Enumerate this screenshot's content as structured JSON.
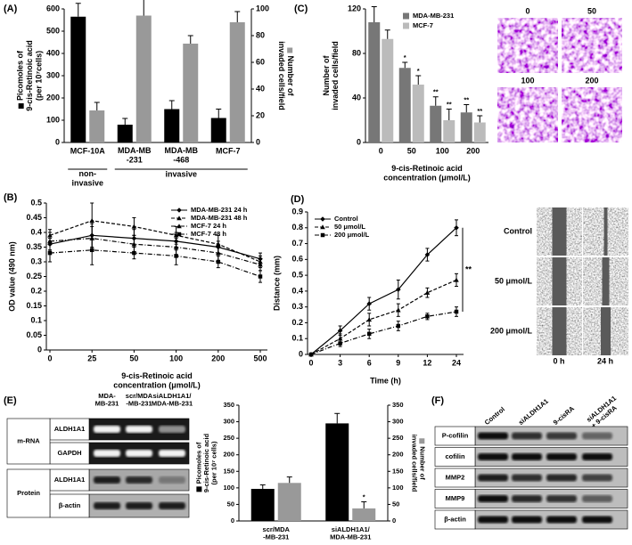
{
  "panel_labels": [
    "(A)",
    "(B)",
    "(C)",
    "(D)",
    "(E)",
    "(F)"
  ],
  "chart_data": [
    {
      "type": "bar",
      "categories": [
        "MCF-10A",
        "MDA-MB\n-231",
        "MDA-MB\n-468",
        "MCF-7"
      ],
      "groups": [
        "non-\ninvasive",
        "invasive"
      ],
      "ylabel": "Picomoles of\n9-cis-Retinoic acid\n(per 10⁷cells)",
      "y2label": "Number of\ninvaded cells/field",
      "ylim": [
        0,
        600
      ],
      "yticks": [
        0,
        100,
        200,
        300,
        400,
        500,
        600
      ],
      "y2lim": [
        0,
        100
      ],
      "y2ticks": [
        0,
        20,
        40,
        60,
        80,
        100
      ],
      "series": [
        {
          "color": "#000000",
          "values": [
            565,
            80,
            150,
            110
          ],
          "errors": [
            60,
            28,
            38,
            40
          ]
        },
        {
          "color": "#999999",
          "axis": "y2",
          "values": [
            24,
            95,
            74,
            90
          ],
          "errors": [
            6,
            14,
            6,
            8
          ]
        }
      ]
    },
    {
      "type": "line",
      "categories": [
        0,
        25,
        50,
        100,
        200,
        500
      ],
      "xlabel": "9-cis-Retinoic acid\nconcentration (μmol/L)",
      "ylabel": "OD value (490 nm)",
      "ylim": [
        0,
        0.5
      ],
      "yticks": [
        0,
        0.05,
        0.1,
        0.15,
        0.2,
        0.25,
        0.3,
        0.35,
        0.4,
        0.45,
        0.5
      ],
      "legend": "upper right",
      "series": [
        {
          "name": "MDA-MB-231 24 h",
          "color": "#000000",
          "marker": "diamond",
          "dash": "solid",
          "values": [
            0.36,
            0.39,
            0.38,
            0.37,
            0.35,
            0.31
          ],
          "errors": [
            0.02,
            0.04,
            0.03,
            0.03,
            0.02,
            0.02
          ]
        },
        {
          "name": "MDA-MB-231 48 h",
          "color": "#000000",
          "marker": "triangle",
          "dash": "dash",
          "values": [
            0.39,
            0.44,
            0.42,
            0.39,
            0.36,
            0.3
          ],
          "errors": [
            0.02,
            0.06,
            0.03,
            0.03,
            0.03,
            0.02
          ]
        },
        {
          "name": "MCF-7 24 h",
          "color": "#000000",
          "marker": "triangle",
          "dash": "dashdot",
          "values": [
            0.37,
            0.38,
            0.36,
            0.35,
            0.33,
            0.29
          ],
          "errors": [
            0.03,
            0.04,
            0.03,
            0.03,
            0.03,
            0.02
          ]
        },
        {
          "name": "MCF-7 48 h",
          "color": "#000000",
          "marker": "square",
          "dash": "dashdot",
          "values": [
            0.33,
            0.34,
            0.33,
            0.32,
            0.3,
            0.25
          ],
          "errors": [
            0.03,
            0.05,
            0.02,
            0.03,
            0.02,
            0.02
          ]
        }
      ]
    },
    {
      "type": "bar",
      "categories": [
        0,
        50,
        100,
        200
      ],
      "xlabel": "9-cis-Retinoic acid\nconcentration (μmol/L)",
      "ylabel": "Number of\ninvaded cells/field",
      "ylim": [
        0,
        120
      ],
      "yticks": [
        0,
        40,
        80,
        120
      ],
      "legend": "upper right",
      "series": [
        {
          "name": "MDA-MB-231",
          "color": "#777777",
          "values": [
            108,
            67,
            33,
            27
          ],
          "errors": [
            14,
            5,
            8,
            7
          ]
        },
        {
          "name": "MCF-7",
          "color": "#bbbbbb",
          "values": [
            93,
            52,
            20,
            18
          ],
          "errors": [
            8,
            8,
            10,
            6
          ]
        }
      ],
      "annotations": [
        {
          "text": "*",
          "series": 0,
          "index": 1
        },
        {
          "text": "*",
          "series": 1,
          "index": 1
        },
        {
          "text": "**",
          "series": 0,
          "index": 2
        },
        {
          "text": "**",
          "series": 1,
          "index": 2
        },
        {
          "text": "**",
          "series": 0,
          "index": 3
        },
        {
          "text": "**",
          "series": 1,
          "index": 3
        }
      ]
    },
    {
      "type": "line",
      "categories": [
        0,
        3,
        6,
        9,
        12,
        24
      ],
      "xlabel": "Time (h)",
      "ylabel": "Distance (mm)",
      "ylim": [
        0,
        0.9
      ],
      "yticks": [
        0,
        0.1,
        0.2,
        0.3,
        0.4,
        0.5,
        0.6,
        0.7,
        0.8,
        0.9
      ],
      "legend": "upper left",
      "series": [
        {
          "name": "Control",
          "color": "#000000",
          "marker": "diamond",
          "dash": "solid",
          "values": [
            0,
            0.15,
            0.32,
            0.41,
            0.63,
            0.8
          ],
          "errors": [
            0,
            0.03,
            0.04,
            0.06,
            0.04,
            0.05
          ]
        },
        {
          "name": "50 μmol/L",
          "color": "#000000",
          "marker": "triangle",
          "dash": "dash",
          "values": [
            0,
            0.1,
            0.22,
            0.28,
            0.39,
            0.47
          ],
          "errors": [
            0,
            0.03,
            0.04,
            0.04,
            0.03,
            0.04
          ]
        },
        {
          "name": "200 μmol/L",
          "color": "#000000",
          "marker": "square",
          "dash": "dashdot",
          "values": [
            0,
            0.07,
            0.13,
            0.18,
            0.24,
            0.27
          ],
          "errors": [
            0,
            0.02,
            0.03,
            0.03,
            0.02,
            0.03
          ]
        }
      ],
      "annotations": [
        {
          "text": "**",
          "series": [
            0,
            2
          ]
        }
      ]
    },
    {
      "type": "bar",
      "categories": [
        "scr/MDA\n-MB-231",
        "siALDH1A1/\nMDA-MB-231"
      ],
      "ylabel": "Picomoles of\n9-cis-Retinoic acid\n(per 10⁷ cells)",
      "y2label": "Number of\ninvaded cells/field",
      "ylim": [
        0,
        350
      ],
      "yticks": [
        0,
        50,
        100,
        150,
        200,
        250,
        300,
        350
      ],
      "y2lim": [
        0,
        350
      ],
      "y2ticks": [
        0,
        50,
        100,
        150,
        200,
        250,
        300,
        350
      ],
      "series": [
        {
          "color": "#000000",
          "values": [
            97,
            295
          ],
          "errors": [
            12,
            30
          ]
        },
        {
          "color": "#999999",
          "axis": "y2",
          "values": [
            115,
            38
          ],
          "errors": [
            18,
            20
          ]
        }
      ],
      "annotations": [
        {
          "text": "*",
          "series": 1,
          "index": 1
        }
      ]
    }
  ],
  "invasion_images": {
    "labels": [
      "0",
      "50",
      "100",
      "200"
    ]
  },
  "migration_images": {
    "rows": [
      "Control",
      "50 μmol/L",
      "200 μmol/L"
    ],
    "columns": [
      "0 h",
      "24 h"
    ]
  },
  "blot_e": {
    "lanes": [
      "MDA-\nMB-231",
      "scr/MDA\n-MB-231",
      "siALDH1A1/\nMDA-MB-231"
    ],
    "groups": [
      "m-RNA",
      "Protein"
    ],
    "rows": [
      "ALDH1A1",
      "GAPDH",
      "ALDH1A1",
      "β-actin"
    ]
  },
  "blot_f": {
    "lanes": [
      "Control",
      "siALDH1A1",
      "9-cisRA",
      "siALDH1A1\n+ 9-cisRA"
    ],
    "rows": [
      "P-cofilin",
      "cofilin",
      "MMP2",
      "MMP9",
      "β-actin"
    ]
  }
}
